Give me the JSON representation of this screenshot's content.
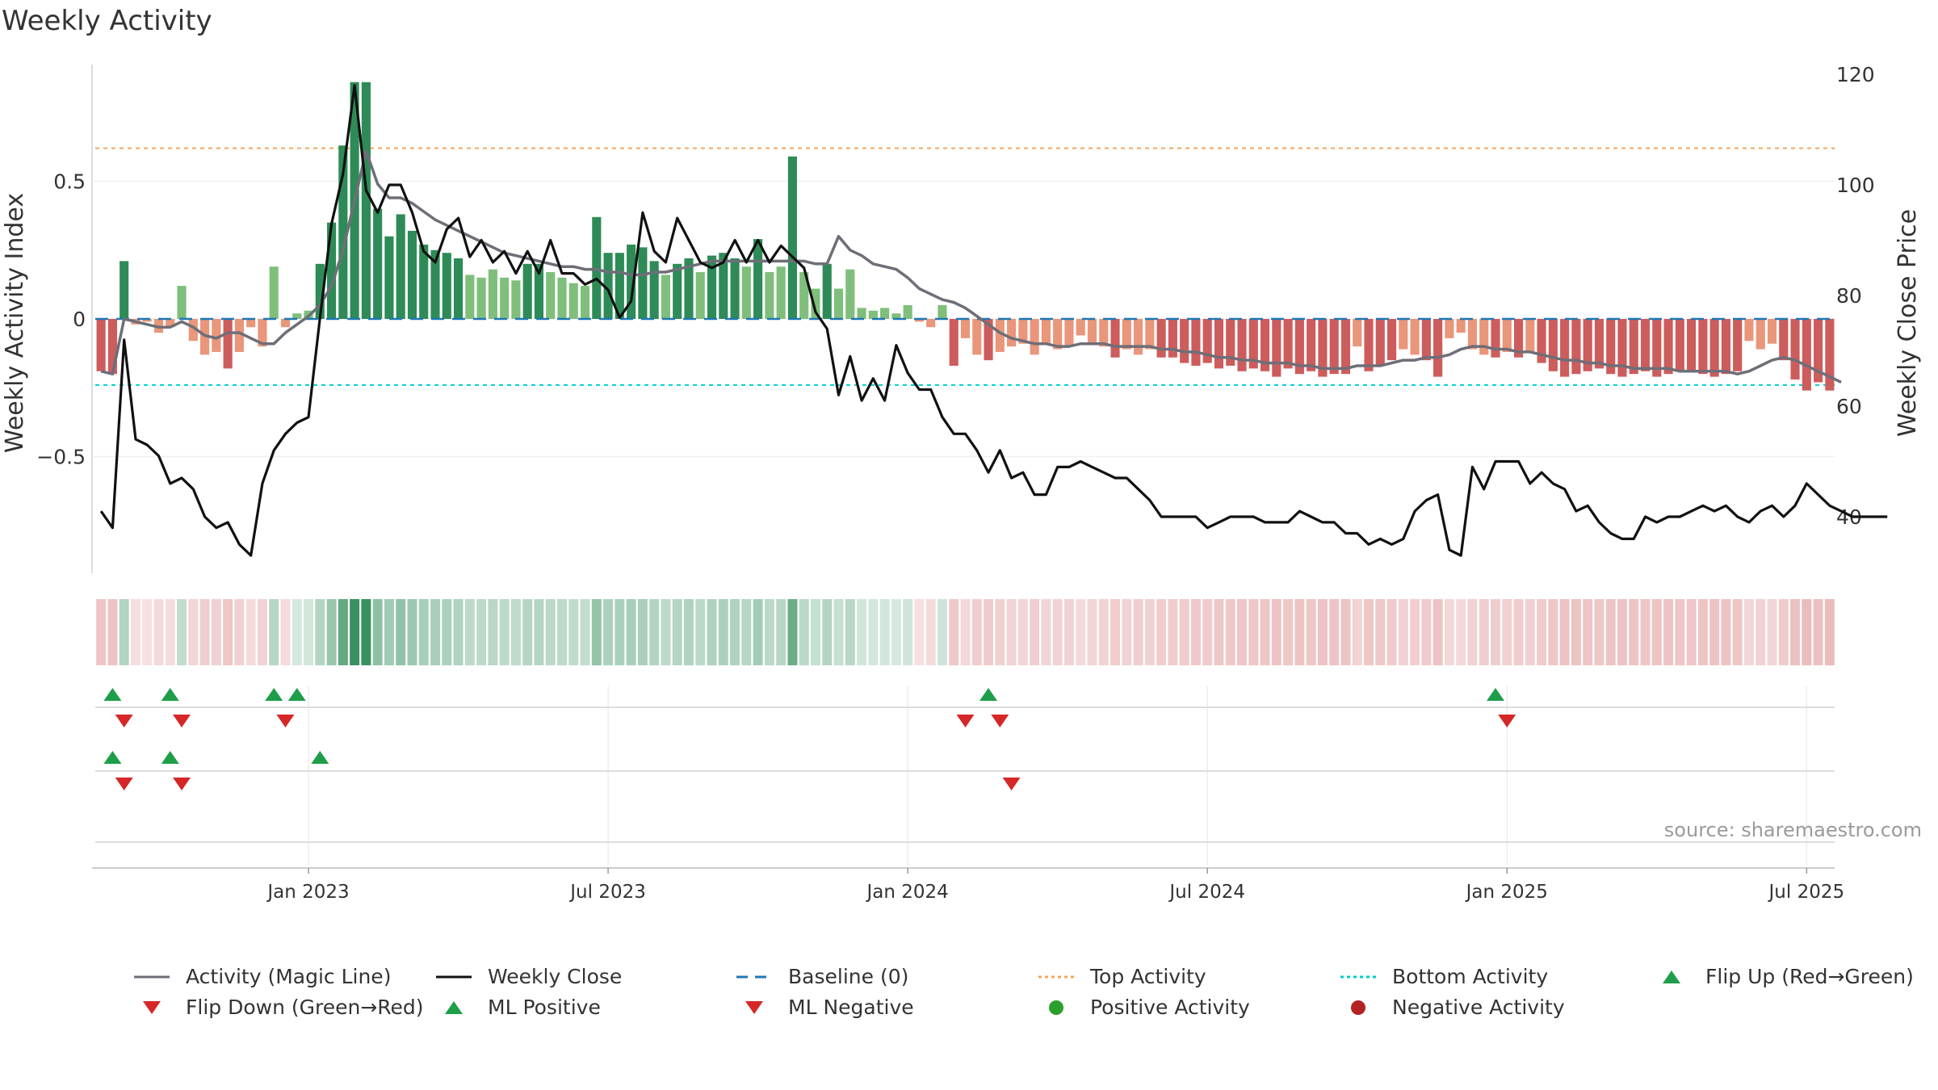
{
  "title": "Weekly Activity",
  "source": "source: sharemaestro.com",
  "colors": {
    "pos_strong": "#2e8b57",
    "pos_light": "#7fbf7b",
    "neg_strong": "#cd5c5c",
    "neg_light": "#e9967a",
    "magic_line": "#6e6e78",
    "close_line": "#111111",
    "baseline": "#1f77b4",
    "top": "#f4a460",
    "bottom": "#00ced1",
    "up": "#1e9e48",
    "down": "#d62728",
    "pos_dot": "#2ca02c",
    "neg_dot": "#b22222"
  },
  "chart_data": {
    "type": "bar",
    "title": "Weekly Activity",
    "ylabel": "Weekly Activity Index",
    "y2label": "Weekly Close Price",
    "ylim": [
      -0.93,
      0.87
    ],
    "y2lim": [
      30,
      122
    ],
    "yticks": [
      {
        "value": 0.5,
        "label": "0.5"
      },
      {
        "value": 0,
        "label": "0"
      },
      {
        "value": -0.5,
        "label": "−0.5"
      }
    ],
    "y2ticks": [
      120,
      100,
      80,
      60,
      40
    ],
    "xticks": [
      {
        "week": 18,
        "label": "Jan 2023"
      },
      {
        "week": 44,
        "label": "Jul 2023"
      },
      {
        "week": 70,
        "label": "Jan 2024"
      },
      {
        "week": 96,
        "label": "Jul 2024"
      },
      {
        "week": 122,
        "label": "Jan 2025"
      },
      {
        "week": 148,
        "label": "Jul 2025"
      }
    ],
    "weeks_start": "2022-09-05",
    "top_activity": 0.62,
    "bottom_activity": -0.24,
    "baseline": 0,
    "activity": [
      -0.19,
      -0.2,
      0.21,
      -0.02,
      -0.01,
      -0.05,
      -0.03,
      0.12,
      -0.08,
      -0.13,
      -0.12,
      -0.18,
      -0.12,
      -0.03,
      -0.1,
      0.19,
      -0.03,
      0.02,
      0.03,
      0.2,
      0.35,
      0.63,
      0.86,
      0.86,
      0.4,
      0.3,
      0.38,
      0.32,
      0.27,
      0.25,
      0.24,
      0.22,
      0.16,
      0.15,
      0.18,
      0.15,
      0.14,
      0.2,
      0.2,
      0.17,
      0.15,
      0.13,
      0.12,
      0.37,
      0.24,
      0.24,
      0.27,
      0.26,
      0.21,
      0.16,
      0.2,
      0.22,
      0.17,
      0.23,
      0.24,
      0.22,
      0.19,
      0.29,
      0.17,
      0.19,
      0.59,
      0.17,
      0.11,
      0.2,
      0.11,
      0.18,
      0.04,
      0.03,
      0.04,
      0.02,
      0.05,
      -0.01,
      -0.03,
      0.05,
      -0.17,
      -0.07,
      -0.13,
      -0.15,
      -0.12,
      -0.1,
      -0.09,
      -0.13,
      -0.09,
      -0.11,
      -0.1,
      -0.06,
      -0.09,
      -0.1,
      -0.14,
      -0.11,
      -0.13,
      -0.11,
      -0.14,
      -0.14,
      -0.16,
      -0.17,
      -0.16,
      -0.18,
      -0.17,
      -0.19,
      -0.18,
      -0.19,
      -0.21,
      -0.18,
      -0.2,
      -0.19,
      -0.21,
      -0.2,
      -0.2,
      -0.1,
      -0.19,
      -0.17,
      -0.15,
      -0.11,
      -0.13,
      -0.15,
      -0.21,
      -0.07,
      -0.05,
      -0.11,
      -0.13,
      -0.14,
      -0.12,
      -0.14,
      -0.12,
      -0.16,
      -0.19,
      -0.21,
      -0.2,
      -0.19,
      -0.18,
      -0.2,
      -0.21,
      -0.2,
      -0.19,
      -0.21,
      -0.2,
      -0.19,
      -0.19,
      -0.2,
      -0.21,
      -0.2,
      -0.19,
      -0.08,
      -0.11,
      -0.09,
      -0.15,
      -0.22,
      -0.26,
      -0.23,
      -0.26
    ],
    "magic_line": [
      -0.19,
      -0.2,
      0.0,
      -0.01,
      -0.02,
      -0.03,
      -0.03,
      -0.01,
      -0.03,
      -0.06,
      -0.07,
      -0.05,
      -0.05,
      -0.07,
      -0.09,
      -0.09,
      -0.05,
      -0.02,
      0.01,
      0.05,
      0.12,
      0.25,
      0.43,
      0.61,
      0.49,
      0.44,
      0.44,
      0.42,
      0.39,
      0.36,
      0.34,
      0.32,
      0.3,
      0.28,
      0.26,
      0.24,
      0.23,
      0.22,
      0.21,
      0.2,
      0.19,
      0.19,
      0.18,
      0.18,
      0.17,
      0.17,
      0.16,
      0.16,
      0.17,
      0.17,
      0.18,
      0.19,
      0.2,
      0.21,
      0.21,
      0.21,
      0.21,
      0.21,
      0.21,
      0.21,
      0.21,
      0.21,
      0.2,
      0.2,
      0.3,
      0.25,
      0.23,
      0.2,
      0.19,
      0.18,
      0.15,
      0.11,
      0.09,
      0.07,
      0.06,
      0.04,
      0.01,
      -0.02,
      -0.05,
      -0.07,
      -0.08,
      -0.09,
      -0.09,
      -0.1,
      -0.1,
      -0.09,
      -0.09,
      -0.09,
      -0.1,
      -0.1,
      -0.1,
      -0.1,
      -0.11,
      -0.11,
      -0.12,
      -0.12,
      -0.13,
      -0.14,
      -0.14,
      -0.15,
      -0.15,
      -0.16,
      -0.16,
      -0.16,
      -0.17,
      -0.17,
      -0.18,
      -0.18,
      -0.18,
      -0.17,
      -0.17,
      -0.17,
      -0.16,
      -0.15,
      -0.15,
      -0.14,
      -0.14,
      -0.13,
      -0.11,
      -0.1,
      -0.1,
      -0.11,
      -0.11,
      -0.12,
      -0.12,
      -0.13,
      -0.14,
      -0.15,
      -0.15,
      -0.16,
      -0.16,
      -0.17,
      -0.17,
      -0.18,
      -0.18,
      -0.18,
      -0.18,
      -0.19,
      -0.19,
      -0.19,
      -0.19,
      -0.19,
      -0.2,
      -0.19,
      -0.17,
      -0.15,
      -0.14,
      -0.15,
      -0.17,
      -0.19,
      -0.21,
      -0.23
    ],
    "weekly_close": [
      41,
      38,
      72,
      54,
      53,
      51,
      46,
      47,
      45,
      40,
      38,
      39,
      35,
      33,
      46,
      52,
      55,
      57,
      58,
      76,
      93,
      102,
      118,
      99,
      95,
      100,
      100,
      95,
      88,
      86,
      92,
      94,
      87,
      90,
      86,
      88,
      84,
      88,
      84,
      90,
      84,
      84,
      82,
      83,
      81,
      76,
      79,
      95,
      88,
      86,
      94,
      90,
      86,
      85,
      86,
      90,
      86,
      90,
      86,
      89,
      87,
      85,
      77,
      74,
      62,
      69,
      61,
      65,
      61,
      71,
      66,
      63,
      63,
      58,
      55,
      55,
      52,
      48,
      52,
      47,
      48,
      44,
      44,
      49,
      49,
      50,
      49,
      48,
      47,
      47,
      45,
      43,
      40,
      40,
      40,
      40,
      38,
      39,
      40,
      40,
      40,
      39,
      39,
      39,
      41,
      40,
      39,
      39,
      37,
      37,
      35,
      36,
      35,
      36,
      41,
      43,
      44,
      34,
      33,
      49,
      45,
      50,
      50,
      50,
      46,
      48,
      46,
      45,
      41,
      42,
      39,
      37,
      36,
      36,
      40,
      39,
      40,
      40,
      41,
      42,
      41,
      42,
      40,
      39,
      41,
      42,
      40,
      42,
      46,
      44,
      42,
      41,
      40,
      40,
      40,
      40
    ],
    "signal_rows": [
      {
        "up": [
          1,
          6,
          15,
          17,
          77,
          121
        ],
        "down": [
          2,
          7,
          16,
          75,
          78,
          122
        ]
      },
      {
        "up": [
          1,
          6,
          19
        ],
        "down": [
          2,
          7,
          79
        ]
      },
      {
        "up": [],
        "down": []
      }
    ]
  },
  "legend": [
    {
      "label": "Activity (Magic Line)",
      "icon": "line-solid-grey"
    },
    {
      "label": "Weekly Close",
      "icon": "line-solid-black"
    },
    {
      "label": "Baseline (0)",
      "icon": "line-dashed-blue"
    },
    {
      "label": "Top Activity",
      "icon": "line-dotted-orange"
    },
    {
      "label": "Bottom Activity",
      "icon": "line-dotted-cyan"
    },
    {
      "label": "Flip Up (Red→Green)",
      "icon": "triangle-up-green"
    },
    {
      "label": "Flip Down (Green→Red)",
      "icon": "triangle-down-red"
    },
    {
      "label": "ML Positive",
      "icon": "triangle-up-green"
    },
    {
      "label": "ML Negative",
      "icon": "triangle-down-red"
    },
    {
      "label": "Positive Activity",
      "icon": "circle-green"
    },
    {
      "label": "Negative Activity",
      "icon": "circle-darkred"
    }
  ]
}
